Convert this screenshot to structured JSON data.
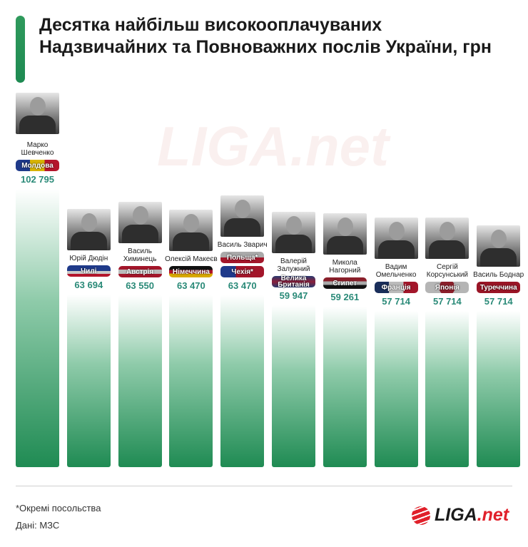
{
  "title": "Десятка найбільш високооплачуваних Надзвичайних та Повноважних послів України, грн",
  "watermark": "LIGA.net",
  "colors": {
    "accent": "#1e8a52",
    "value_text": "#2a8a78",
    "logo_red": "#e0202a"
  },
  "chart_data": {
    "type": "bar",
    "title": "Десятка найбільш високооплачуваних Надзвичайних та Повноважних послів України, грн",
    "categories": [
      "Марко Шевченко",
      "Юрій Дюдін",
      "Василь Химинець",
      "Олексій Макеєв",
      "Василь Зварич",
      "Валерій Залужний",
      "Микола Нагорний",
      "Вадим Омельченко",
      "Сергій Корсунський",
      "Василь Боднар"
    ],
    "values": [
      102795,
      63694,
      63550,
      63470,
      63470,
      59947,
      59261,
      57714,
      57714,
      57714
    ],
    "unit": "грн"
  },
  "ambassadors": [
    {
      "name": "Марко Шевченко",
      "countries": [
        {
          "label": "Молдова",
          "bg": "linear-gradient(90deg,#1f3a8a 33%,#d8b400 33% 66%,#b3152b 66%)"
        }
      ],
      "value": "102 795",
      "amount": 102795
    },
    {
      "name": "Юрій Дюдін",
      "countries": [
        {
          "label": "Чилі",
          "bg": "linear-gradient(#1f3a8a 50%,#c9c9c9 50% 75%,#b3152b 75%)"
        }
      ],
      "value": "63 694",
      "amount": 63694
    },
    {
      "name": "Василь Химинець",
      "countries": [
        {
          "label": "Австрія",
          "bg": "linear-gradient(#a3162a 30%,#bbb 30% 70%,#a3162a 70%)"
        }
      ],
      "value": "63 550",
      "amount": 63550
    },
    {
      "name": "Олексій Макеєв",
      "countries": [
        {
          "label": "Німеччина",
          "bg": "linear-gradient(#111 33%,#b3152b 33% 66%,#d8a800 66%)"
        }
      ],
      "value": "63 470",
      "amount": 63470
    },
    {
      "name": "Василь Зварич",
      "countries": [
        {
          "label": "Польща*",
          "bg": "linear-gradient(#aaa 50%,#a3162a 50%)"
        },
        {
          "label": "Чехія*",
          "bg": "linear-gradient(90deg,#1f3a8a 35%,#a3162a 35%)"
        }
      ],
      "value": "63 470",
      "amount": 63470
    },
    {
      "name": "Валерій Залужний",
      "countries": [
        {
          "label": "Велика Британія",
          "bg": "linear-gradient(#273a70,#8a1f3a 50%,#273a70)"
        }
      ],
      "value": "59 947",
      "amount": 59947
    },
    {
      "name": "Микола Нагорний",
      "countries": [
        {
          "label": "Єгипет",
          "bg": "linear-gradient(#8a1f2a 33%,#aaa 33% 66%,#111 66%)"
        }
      ],
      "value": "59 261",
      "amount": 59261
    },
    {
      "name": "Вадим Омельченко",
      "countries": [
        {
          "label": "Франція",
          "bg": "linear-gradient(90deg,#1a2e5a 33%,#bbb 33% 66%,#a3162a 66%)"
        }
      ],
      "value": "57 714",
      "amount": 57714
    },
    {
      "name": "Сергій Корсунський",
      "countries": [
        {
          "label": "Японія",
          "bg": "radial-gradient(circle,#8a1f2a 35%,#b5b5b5 36%)"
        }
      ],
      "value": "57 714",
      "amount": 57714
    },
    {
      "name": "Василь Боднар",
      "countries": [
        {
          "label": "Туреччина",
          "bg": "#9a1526"
        }
      ],
      "value": "57 714",
      "amount": 57714
    }
  ],
  "footer": {
    "note": "*Окремі посольства",
    "source": "Дані: МЗС"
  },
  "logo": {
    "main": "LIGA",
    "suffix": ".net"
  }
}
